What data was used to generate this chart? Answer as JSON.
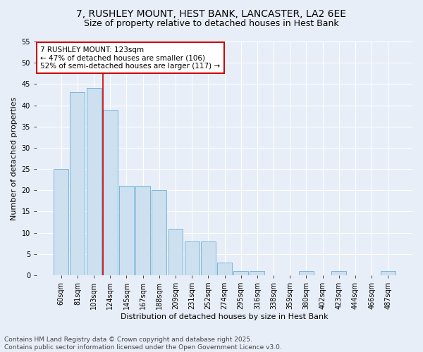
{
  "title": "7, RUSHLEY MOUNT, HEST BANK, LANCASTER, LA2 6EE",
  "subtitle": "Size of property relative to detached houses in Hest Bank",
  "xlabel": "Distribution of detached houses by size in Hest Bank",
  "ylabel": "Number of detached properties",
  "categories": [
    "60sqm",
    "81sqm",
    "103sqm",
    "124sqm",
    "145sqm",
    "167sqm",
    "188sqm",
    "209sqm",
    "231sqm",
    "252sqm",
    "274sqm",
    "295sqm",
    "316sqm",
    "338sqm",
    "359sqm",
    "380sqm",
    "402sqm",
    "423sqm",
    "444sqm",
    "466sqm",
    "487sqm"
  ],
  "values": [
    25,
    43,
    44,
    39,
    21,
    21,
    20,
    11,
    8,
    8,
    3,
    1,
    1,
    0,
    0,
    1,
    0,
    1,
    0,
    0,
    1
  ],
  "bar_color": "#cde0f0",
  "bar_edge_color": "#6aaed6",
  "highlight_bar_index": 3,
  "annotation_line1": "7 RUSHLEY MOUNT: 123sqm",
  "annotation_line2": "← 47% of detached houses are smaller (106)",
  "annotation_line3": "52% of semi-detached houses are larger (117) →",
  "annotation_box_color": "#ffffff",
  "annotation_box_edge_color": "#cc0000",
  "ylim": [
    0,
    55
  ],
  "yticks": [
    0,
    5,
    10,
    15,
    20,
    25,
    30,
    35,
    40,
    45,
    50,
    55
  ],
  "background_color": "#e8eef7",
  "grid_color": "#ffffff",
  "footnote": "Contains HM Land Registry data © Crown copyright and database right 2025.\nContains public sector information licensed under the Open Government Licence v3.0.",
  "title_fontsize": 10,
  "subtitle_fontsize": 9,
  "axis_label_fontsize": 8,
  "tick_fontsize": 7,
  "annotation_fontsize": 7.5,
  "footnote_fontsize": 6.5
}
